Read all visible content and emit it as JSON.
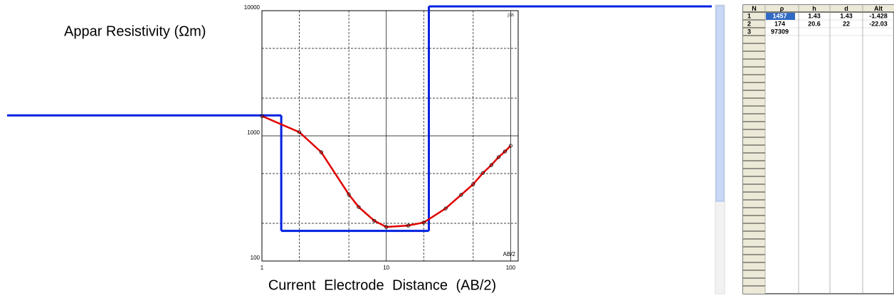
{
  "chart_data": {
    "type": "line",
    "y_label": "Appar Resistivity (Ωm)",
    "x_label": "Current Electrode Distance (AB/2)",
    "corner_y_label": "ρa",
    "corner_x_label": "AB/2",
    "x_log": true,
    "y_log": true,
    "grid": true,
    "xlim": [
      1,
      115
    ],
    "ylim": [
      100,
      10000
    ],
    "xticks": [
      1,
      10,
      100
    ],
    "yticks": [
      100,
      1000,
      10000
    ],
    "xminor": [
      2,
      5,
      20,
      50
    ],
    "yminor": [
      200,
      500,
      2000,
      5000
    ],
    "x": [
      1,
      2,
      3,
      5,
      6,
      8,
      10,
      15,
      20,
      30,
      40,
      50,
      60,
      70,
      80,
      90,
      100
    ],
    "series": [
      {
        "color": "#e00000",
        "values": [
          1440,
          1070,
          740,
          340,
          270,
          210,
          187,
          192,
          203,
          263,
          338,
          411,
          506,
          585,
          676,
          750,
          833
        ]
      }
    ],
    "model_color": "#0020e0"
  },
  "table": {
    "columns": [
      "N",
      "ρ",
      "h",
      "d",
      "Alt"
    ],
    "rows": [
      [
        1,
        1457,
        1.43,
        1.43,
        -1.428
      ],
      [
        2,
        174,
        20.6,
        22,
        -22.03
      ],
      [
        3,
        97309
      ]
    ]
  }
}
